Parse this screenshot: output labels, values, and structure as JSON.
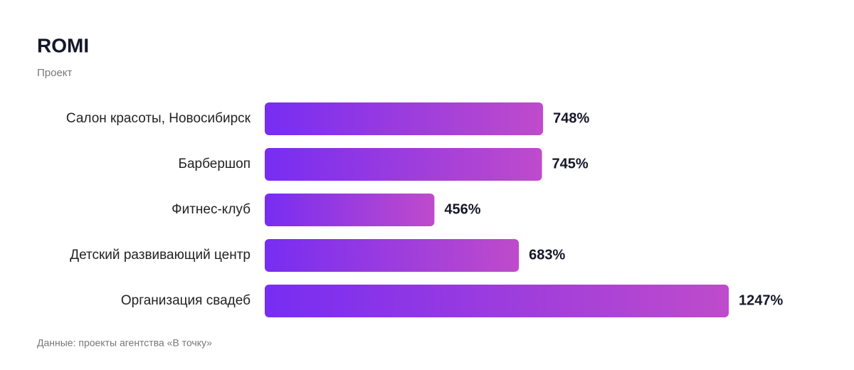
{
  "chart_data": {
    "type": "hbar",
    "title": "ROMI",
    "subtitle": "Проект",
    "categories": [
      "Салон красоты, Новосибирск",
      "Барбершоп",
      "Фитнес-клуб",
      "Детский развивающий центр",
      "Организация свадеб"
    ],
    "values": [
      748,
      745,
      456,
      683,
      1247
    ],
    "value_labels": [
      "748%",
      "745%",
      "456%",
      "683%",
      "1247%"
    ],
    "gradient": [
      "#772df2",
      "#bf4bcb"
    ],
    "note": "Данные: проекты агентства «В точку»"
  }
}
